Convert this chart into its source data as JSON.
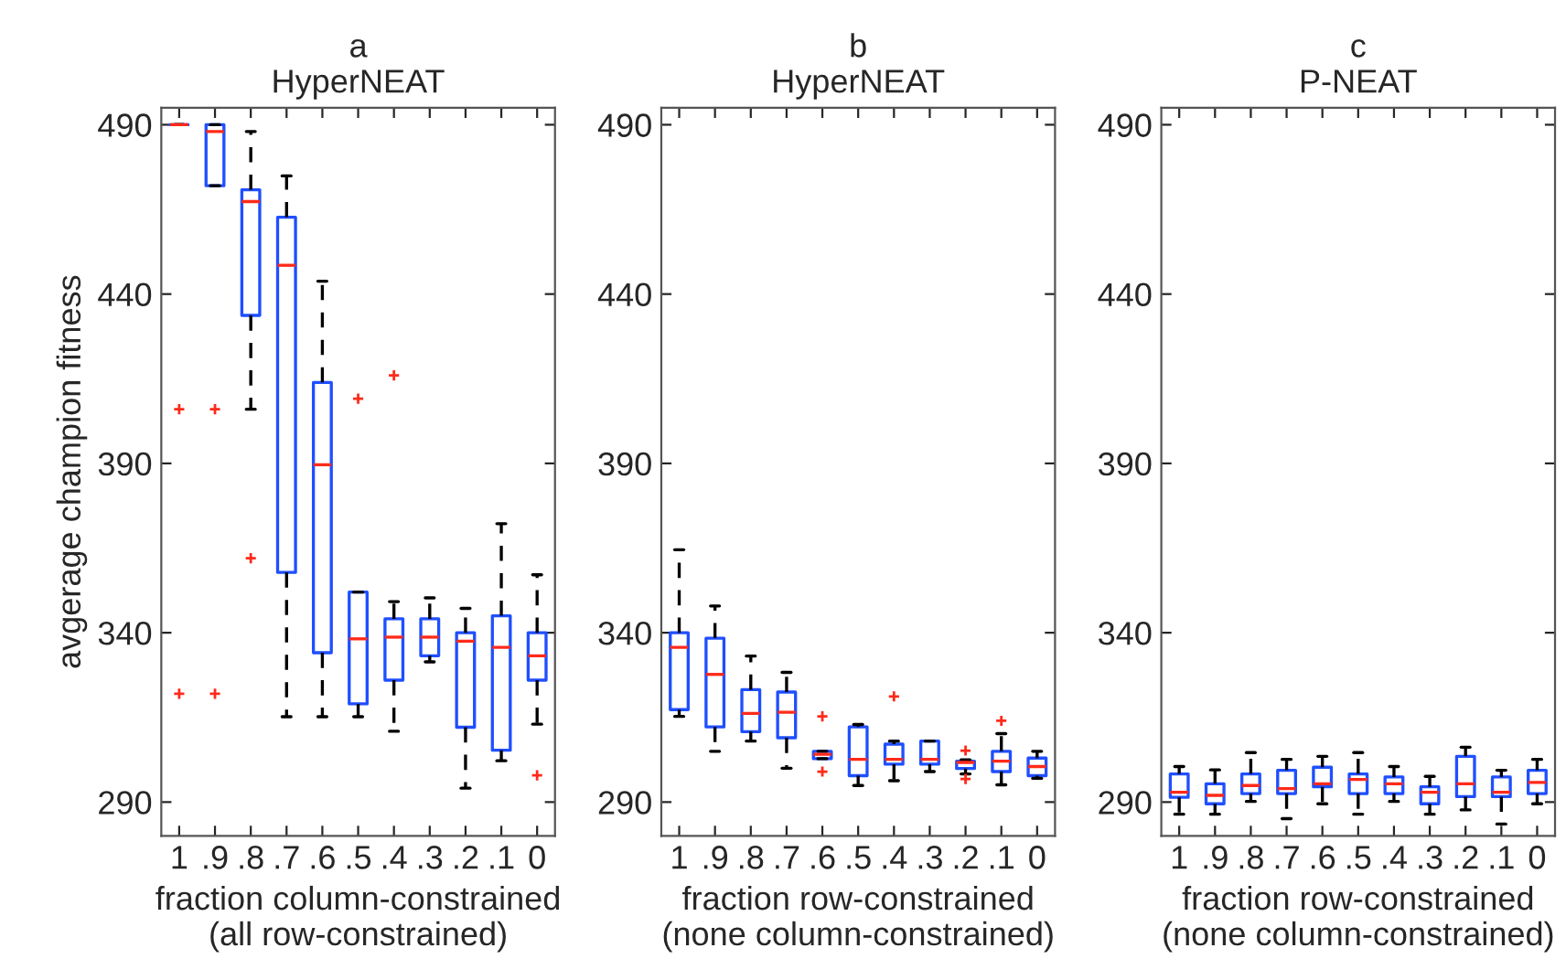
{
  "chart_data": [
    {
      "type": "box",
      "title": "a\nHyperNEAT",
      "xlabel": "fraction column-constrained\n(all row-constrained)",
      "ylabel": "avgerage champion fitness",
      "categories": [
        "1",
        ".9",
        ".8",
        ".7",
        ".6",
        ".5",
        ".4",
        ".3",
        ".2",
        ".1",
        "0"
      ],
      "ylim": [
        280,
        495
      ],
      "yticks": [
        290,
        340,
        390,
        440,
        490
      ],
      "grid": false,
      "color": "#1f4fff",
      "boxes": [
        {
          "low": 490,
          "q1": 490,
          "median": 490,
          "q3": 490,
          "high": 490,
          "outliers": [
            406,
            322
          ]
        },
        {
          "low": 472,
          "q1": 472,
          "median": 488,
          "q3": 490,
          "high": 490,
          "outliers": [
            406,
            322
          ]
        },
        {
          "low": 406,
          "q1": 433.7,
          "median": 467.3,
          "q3": 470.8,
          "high": 488,
          "outliers": [
            362
          ]
        },
        {
          "low": 315.2,
          "q1": 357.8,
          "median": 448.5,
          "q3": 462.7,
          "high": 474.9
        },
        {
          "low": 315.2,
          "q1": 334.1,
          "median": 389.6,
          "q3": 413.9,
          "high": 443.8
        },
        {
          "low": 315.2,
          "q1": 319,
          "median": 338.2,
          "q3": 352,
          "high": 352,
          "outliers": [
            409.1
          ]
        },
        {
          "low": 310.9,
          "q1": 326,
          "median": 338.7,
          "q3": 344.1,
          "high": 349.2,
          "outliers": [
            416
          ]
        },
        {
          "low": 331.4,
          "q1": 333.2,
          "median": 338.7,
          "q3": 344.1,
          "high": 350.3
        },
        {
          "low": 294.1,
          "q1": 312.1,
          "median": 337.5,
          "q3": 340,
          "high": 347.2
        },
        {
          "low": 302.2,
          "q1": 305.3,
          "median": 335.7,
          "q3": 345,
          "high": 372.2
        },
        {
          "low": 313,
          "q1": 326,
          "median": 333.2,
          "q3": 340,
          "high": 357.1,
          "outliers": [
            297.9
          ]
        }
      ]
    },
    {
      "type": "box",
      "title": "b\nHyperNEAT",
      "xlabel": "fraction row-constrained\n(none column-constrained)",
      "categories": [
        "1",
        ".9",
        ".8",
        ".7",
        ".6",
        ".5",
        ".4",
        ".3",
        ".2",
        ".1",
        "0"
      ],
      "ylim": [
        280,
        495
      ],
      "yticks": [
        290,
        340,
        390,
        440,
        490
      ],
      "grid": false,
      "color": "#1f4fff",
      "boxes": [
        {
          "low": 315.3,
          "q1": 317.3,
          "median": 335.7,
          "q3": 340,
          "high": 364.5
        },
        {
          "low": 305,
          "q1": 312.2,
          "median": 327.7,
          "q3": 338.4,
          "high": 347.9
        },
        {
          "low": 308,
          "q1": 310.8,
          "median": 316.2,
          "q3": 323.2,
          "high": 333.1
        },
        {
          "low": 300,
          "q1": 309,
          "median": 316.5,
          "q3": 322.5,
          "high": 328.3
        },
        {
          "low": 302.8,
          "q1": 302.8,
          "median": 304.1,
          "q3": 305,
          "high": 305,
          "outliers": [
            315.3,
            299
          ]
        },
        {
          "low": 294.9,
          "q1": 297.8,
          "median": 302.6,
          "q3": 312.2,
          "high": 312.9
        },
        {
          "low": 296.3,
          "q1": 301.2,
          "median": 302.6,
          "q3": 307.1,
          "high": 308,
          "outliers": [
            321.2
          ]
        },
        {
          "low": 299,
          "q1": 301.2,
          "median": 302.6,
          "q3": 308,
          "high": 308
        },
        {
          "low": 298.3,
          "q1": 299.9,
          "median": 301.7,
          "q3": 302.1,
          "high": 302.5,
          "outliers": [
            305.2,
            296.8
          ]
        },
        {
          "low": 295.1,
          "q1": 299,
          "median": 302.1,
          "q3": 305,
          "high": 310.2,
          "outliers": [
            314
          ]
        },
        {
          "low": 297,
          "q1": 297.8,
          "median": 300.5,
          "q3": 303,
          "high": 305
        }
      ]
    },
    {
      "type": "box",
      "title": "c\nP-NEAT",
      "xlabel": "fraction row-constrained\n(none column-constrained)",
      "categories": [
        "1",
        ".9",
        ".8",
        ".7",
        ".6",
        ".5",
        ".4",
        ".3",
        ".2",
        ".1",
        "0"
      ],
      "ylim": [
        280,
        495
      ],
      "yticks": [
        290,
        340,
        390,
        440,
        490
      ],
      "grid": false,
      "color": "#1f4fff",
      "boxes": [
        {
          "low": 286.4,
          "q1": 291.4,
          "median": 292.9,
          "q3": 298.3,
          "high": 300.5
        },
        {
          "low": 286.4,
          "q1": 289.5,
          "median": 292,
          "q3": 295.4,
          "high": 299.5
        },
        {
          "low": 290.2,
          "q1": 292.5,
          "median": 294.9,
          "q3": 298.3,
          "high": 304.6
        },
        {
          "low": 285.1,
          "q1": 292.5,
          "median": 294,
          "q3": 299.4,
          "high": 302.6
        },
        {
          "low": 289.5,
          "q1": 294.5,
          "median": 295.4,
          "q3": 300.3,
          "high": 303.5
        },
        {
          "low": 286.4,
          "q1": 292.5,
          "median": 296.7,
          "q3": 298.3,
          "high": 304.6
        },
        {
          "low": 290.2,
          "q1": 292.5,
          "median": 295.4,
          "q3": 297.4,
          "high": 300.5
        },
        {
          "low": 286.4,
          "q1": 289.5,
          "median": 292.9,
          "q3": 294.5,
          "high": 297.6
        },
        {
          "low": 287.7,
          "q1": 291.6,
          "median": 295.4,
          "q3": 303.5,
          "high": 306.2
        },
        {
          "low": 283.5,
          "q1": 291.6,
          "median": 292.9,
          "q3": 297.4,
          "high": 299.4
        },
        {
          "low": 289.5,
          "q1": 292.5,
          "median": 295.8,
          "q3": 299.4,
          "high": 302.6
        }
      ]
    }
  ]
}
